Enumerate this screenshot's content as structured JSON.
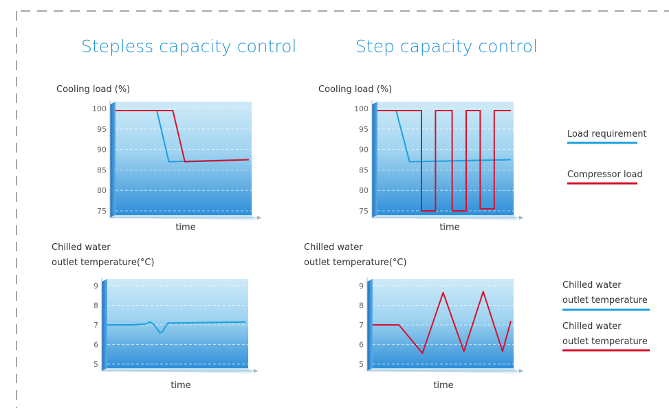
{
  "colors": {
    "accent_blue": "#1aa0e0",
    "accent_red": "#d8102a",
    "title_blue": "#1a8fd6",
    "frame_dash": "#8a8a8a"
  },
  "legend": {
    "load_requirement": "Load requirement",
    "compressor_load": "Compressor load",
    "chilled_water_blue": [
      "Chilled water",
      "outlet temperature"
    ],
    "chilled_water_red": [
      "Chilled water",
      "outlet temperature"
    ]
  },
  "chart_data": [
    {
      "id": "stepless-cooling",
      "type": "line",
      "panel_title": "Stepless capacity control",
      "ylabel": [
        "Cooling load (%)"
      ],
      "xlabel": "time",
      "ylim": [
        75,
        100
      ],
      "yticks": [
        75,
        80,
        85,
        90,
        95,
        100
      ],
      "grid": true,
      "series": [
        {
          "name": "Load requirement",
          "color": "#1aa0e0",
          "x": [
            0,
            31,
            40,
            100
          ],
          "y": [
            99.5,
            99.5,
            87,
            87.5
          ]
        },
        {
          "name": "Compressor load",
          "color": "#d8102a",
          "x": [
            0,
            43,
            52,
            100
          ],
          "y": [
            99.5,
            99.5,
            87,
            87.5
          ]
        }
      ]
    },
    {
      "id": "step-cooling",
      "type": "line",
      "panel_title": "Step capacity control",
      "ylabel": [
        "Cooling load (%)"
      ],
      "xlabel": "time",
      "ylim": [
        75,
        100
      ],
      "yticks": [
        75,
        80,
        85,
        90,
        95,
        100
      ],
      "grid": true,
      "series": [
        {
          "name": "Load requirement",
          "color": "#1aa0e0",
          "x": [
            0,
            14,
            24,
            100
          ],
          "y": [
            99.5,
            99.5,
            87,
            87.5
          ]
        },
        {
          "name": "Compressor load",
          "color": "#d8102a",
          "x": [
            0,
            33,
            33,
            43.5,
            43.5,
            56,
            56,
            66.5,
            66.5,
            77,
            77,
            87.5,
            87.5,
            100
          ],
          "y": [
            99.5,
            99.5,
            75,
            75,
            99.5,
            99.5,
            75,
            75,
            99.5,
            99.5,
            75.5,
            75.5,
            99.5,
            99.5
          ]
        }
      ]
    },
    {
      "id": "stepless-temp",
      "type": "line",
      "ylabel": [
        "Chilled water",
        "outlet temperature(°C)"
      ],
      "xlabel": "time",
      "ylim": [
        5,
        9
      ],
      "yticks": [
        5,
        6,
        7,
        8,
        9
      ],
      "grid": true,
      "series": [
        {
          "name": "Chilled water outlet temperature",
          "color": "#1aa0e0",
          "x": [
            0,
            18,
            28,
            31,
            34,
            36,
            38,
            40,
            42,
            44,
            46,
            50,
            100
          ],
          "y": [
            7.0,
            7.0,
            7.05,
            7.15,
            7.0,
            6.8,
            6.6,
            6.65,
            6.9,
            7.1,
            7.1,
            7.1,
            7.15
          ]
        }
      ]
    },
    {
      "id": "step-temp",
      "type": "line",
      "ylabel": [
        "Chilled water",
        "outlet temperature(°C)"
      ],
      "xlabel": "time",
      "ylim": [
        5,
        9
      ],
      "yticks": [
        5,
        6,
        7,
        8,
        9
      ],
      "grid": true,
      "series": [
        {
          "name": "Chilled water outlet temperature",
          "color": "#d8102a",
          "x": [
            0,
            19,
            36,
            51,
            66,
            80,
            94,
            100
          ],
          "y": [
            7.0,
            7.0,
            5.55,
            8.65,
            5.65,
            8.7,
            5.65,
            7.2
          ]
        }
      ]
    }
  ]
}
